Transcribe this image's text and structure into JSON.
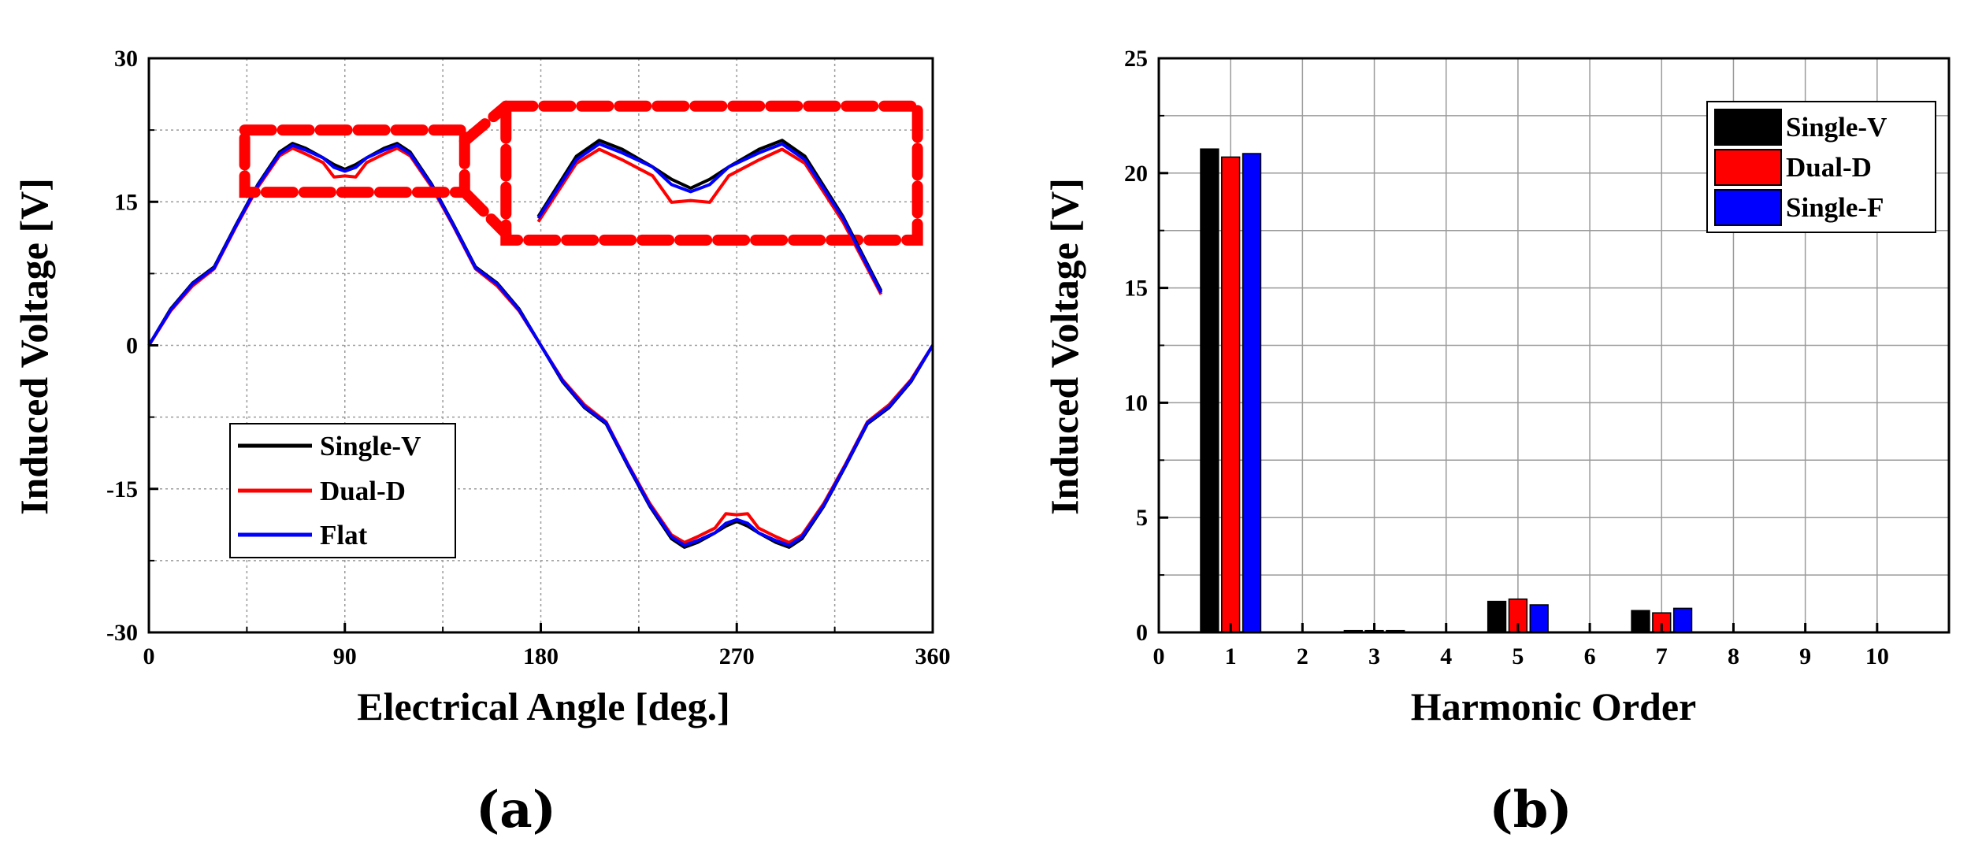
{
  "chart_data": [
    {
      "type": "line",
      "panel_label": "(a)",
      "xlabel": "Electrical Angle [deg.]",
      "ylabel": "Induced Voltage [V]",
      "xlim": [
        0,
        360
      ],
      "ylim": [
        -30,
        30
      ],
      "xticks": [
        "0",
        "90",
        "180",
        "270",
        "360"
      ],
      "yticks": [
        "-30",
        "-15",
        "0",
        "15",
        "30"
      ],
      "grid": true,
      "legend_position": "bottom-left",
      "series": [
        {
          "name": "Single-V",
          "color": "#000000",
          "x": [
            0,
            10,
            20,
            30,
            40,
            50,
            60,
            66,
            72,
            80,
            85,
            90,
            95,
            100,
            108,
            114,
            120,
            130,
            140,
            150,
            160,
            170,
            180,
            190,
            200,
            210,
            220,
            230,
            240,
            246,
            252,
            260,
            265,
            270,
            275,
            280,
            288,
            294,
            300,
            310,
            320,
            330,
            340,
            350,
            360
          ],
          "y": [
            0,
            3.8,
            6.5,
            8.2,
            12.6,
            16.8,
            20.2,
            21.1,
            20.6,
            19.6,
            18.9,
            18.4,
            18.9,
            19.6,
            20.6,
            21.1,
            20.2,
            16.8,
            12.6,
            8.2,
            6.5,
            3.8,
            0,
            -3.8,
            -6.5,
            -8.2,
            -12.6,
            -16.8,
            -20.2,
            -21.1,
            -20.6,
            -19.6,
            -18.9,
            -18.4,
            -18.9,
            -19.6,
            -20.6,
            -21.1,
            -20.2,
            -16.8,
            -12.6,
            -8.2,
            -6.5,
            -3.8,
            0
          ]
        },
        {
          "name": "Dual-D",
          "color": "#ff0000",
          "x": [
            0,
            10,
            20,
            30,
            40,
            50,
            60,
            66,
            72,
            80,
            85,
            90,
            95,
            100,
            108,
            114,
            120,
            130,
            140,
            150,
            160,
            170,
            180,
            190,
            200,
            210,
            220,
            230,
            240,
            246,
            252,
            260,
            265,
            270,
            275,
            280,
            288,
            294,
            300,
            310,
            320,
            330,
            340,
            350,
            360
          ],
          "y": [
            0,
            3.6,
            6.2,
            8.0,
            12.4,
            16.5,
            19.8,
            20.6,
            20.0,
            19.1,
            17.6,
            17.7,
            17.6,
            19.1,
            20.0,
            20.6,
            19.8,
            16.5,
            12.4,
            8.0,
            6.2,
            3.6,
            0,
            -3.6,
            -6.2,
            -8.0,
            -12.4,
            -16.5,
            -19.8,
            -20.6,
            -20.0,
            -19.1,
            -17.6,
            -17.7,
            -17.6,
            -19.1,
            -20.0,
            -20.6,
            -19.8,
            -16.5,
            -12.4,
            -8.0,
            -6.2,
            -3.6,
            0
          ]
        },
        {
          "name": "Flat",
          "color": "#0000ff",
          "x": [
            0,
            10,
            20,
            30,
            40,
            50,
            60,
            66,
            72,
            80,
            85,
            90,
            95,
            100,
            108,
            114,
            120,
            130,
            140,
            150,
            160,
            170,
            180,
            190,
            200,
            210,
            220,
            230,
            240,
            246,
            252,
            260,
            265,
            270,
            275,
            280,
            288,
            294,
            300,
            310,
            320,
            330,
            340,
            350,
            360
          ],
          "y": [
            0,
            3.7,
            6.4,
            8.1,
            12.5,
            16.7,
            20.0,
            20.9,
            20.4,
            19.6,
            18.6,
            18.2,
            18.6,
            19.6,
            20.4,
            20.9,
            20.0,
            16.7,
            12.5,
            8.1,
            6.4,
            3.7,
            0,
            -3.7,
            -6.4,
            -8.1,
            -12.5,
            -16.7,
            -20.0,
            -20.9,
            -20.4,
            -19.6,
            -18.6,
            -18.2,
            -18.6,
            -19.6,
            -20.4,
            -20.9,
            -20.0,
            -16.7,
            -12.5,
            -8.1,
            -6.4,
            -3.7,
            0
          ]
        }
      ],
      "annotation": {
        "type": "zoom-inset",
        "source_x": [
          44,
          145
        ],
        "source_y": [
          16,
          22.5
        ],
        "inset_x": [
          164,
          353
        ],
        "inset_y": [
          11,
          25
        ],
        "inset_ylim": [
          16,
          22.5
        ]
      }
    },
    {
      "type": "bar",
      "panel_label": "(b)",
      "xlabel": "Harmonic Order",
      "ylabel": "Induced Voltage [V]",
      "xlim": [
        0,
        11
      ],
      "ylim": [
        0,
        25
      ],
      "xticks": [
        "0",
        "1",
        "2",
        "3",
        "4",
        "5",
        "6",
        "7",
        "8",
        "9",
        "10"
      ],
      "yticks": [
        "0",
        "5",
        "10",
        "15",
        "20",
        "25"
      ],
      "grid": true,
      "legend_position": "top-right",
      "categories": [
        1,
        3,
        5,
        7
      ],
      "series": [
        {
          "name": "Single-V",
          "color": "#000000",
          "values": [
            21.05,
            0.08,
            1.35,
            0.95
          ]
        },
        {
          "name": "Dual-D",
          "color": "#ff0000",
          "values": [
            20.7,
            0.08,
            1.45,
            0.85
          ]
        },
        {
          "name": "Single-F",
          "color": "#0000ff",
          "values": [
            20.85,
            0.08,
            1.2,
            1.05
          ]
        }
      ]
    }
  ]
}
